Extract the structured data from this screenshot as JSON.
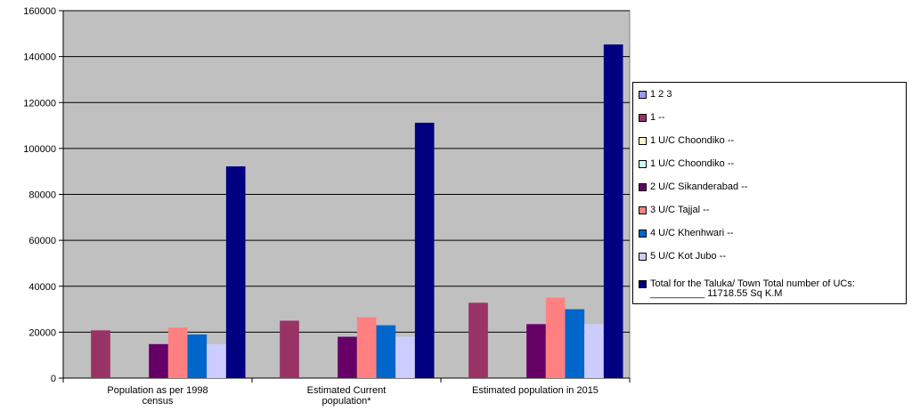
{
  "chart_data": {
    "type": "bar",
    "title": "",
    "xlabel": "",
    "ylabel": "",
    "ylim": [
      0,
      160000
    ],
    "yticks": [
      "0",
      "20000",
      "40000",
      "60000",
      "80000",
      "100000",
      "120000",
      "140000",
      "160000"
    ],
    "grid": true,
    "legend_position": "right",
    "categories": [
      [
        "Population as per 1998",
        "census"
      ],
      [
        "Estimated Current",
        "population*"
      ],
      [
        "Estimated population in 2015"
      ]
    ],
    "series": [
      {
        "name": "1 2 3",
        "color": "#9999ff",
        "values": [
          null,
          null,
          null
        ]
      },
      {
        "name": "1 --",
        "color": "#993366",
        "values": [
          20800,
          25000,
          32800
        ]
      },
      {
        "name": "1 U/C Choondiko --",
        "color": "#ffffcc",
        "values": [
          null,
          null,
          null
        ]
      },
      {
        "name": "1 U/C Choondiko --",
        "color": "#ccffff",
        "values": [
          null,
          null,
          null
        ]
      },
      {
        "name": "2 U/C Sikanderabad --",
        "color": "#660066",
        "values": [
          14800,
          18000,
          23500
        ]
      },
      {
        "name": "3 U/C Tajjal --",
        "color": "#ff8080",
        "values": [
          22000,
          26500,
          35000
        ]
      },
      {
        "name": "4 U/C Khenhwari --",
        "color": "#0066cc",
        "values": [
          19000,
          23000,
          30000
        ]
      },
      {
        "name": "5 U/C Kot Jubo --",
        "color": "#ccccff",
        "values": [
          14800,
          18000,
          23500
        ]
      },
      {
        "name": "Total for the Taluka/ Town Total number of UCs: __________ 11718.55 Sq K.M",
        "color": "#000080",
        "values": [
          92200,
          111200,
          145300
        ]
      }
    ]
  },
  "colors": {
    "plot_background": "#c0c0c0",
    "gridline": "#000000"
  }
}
